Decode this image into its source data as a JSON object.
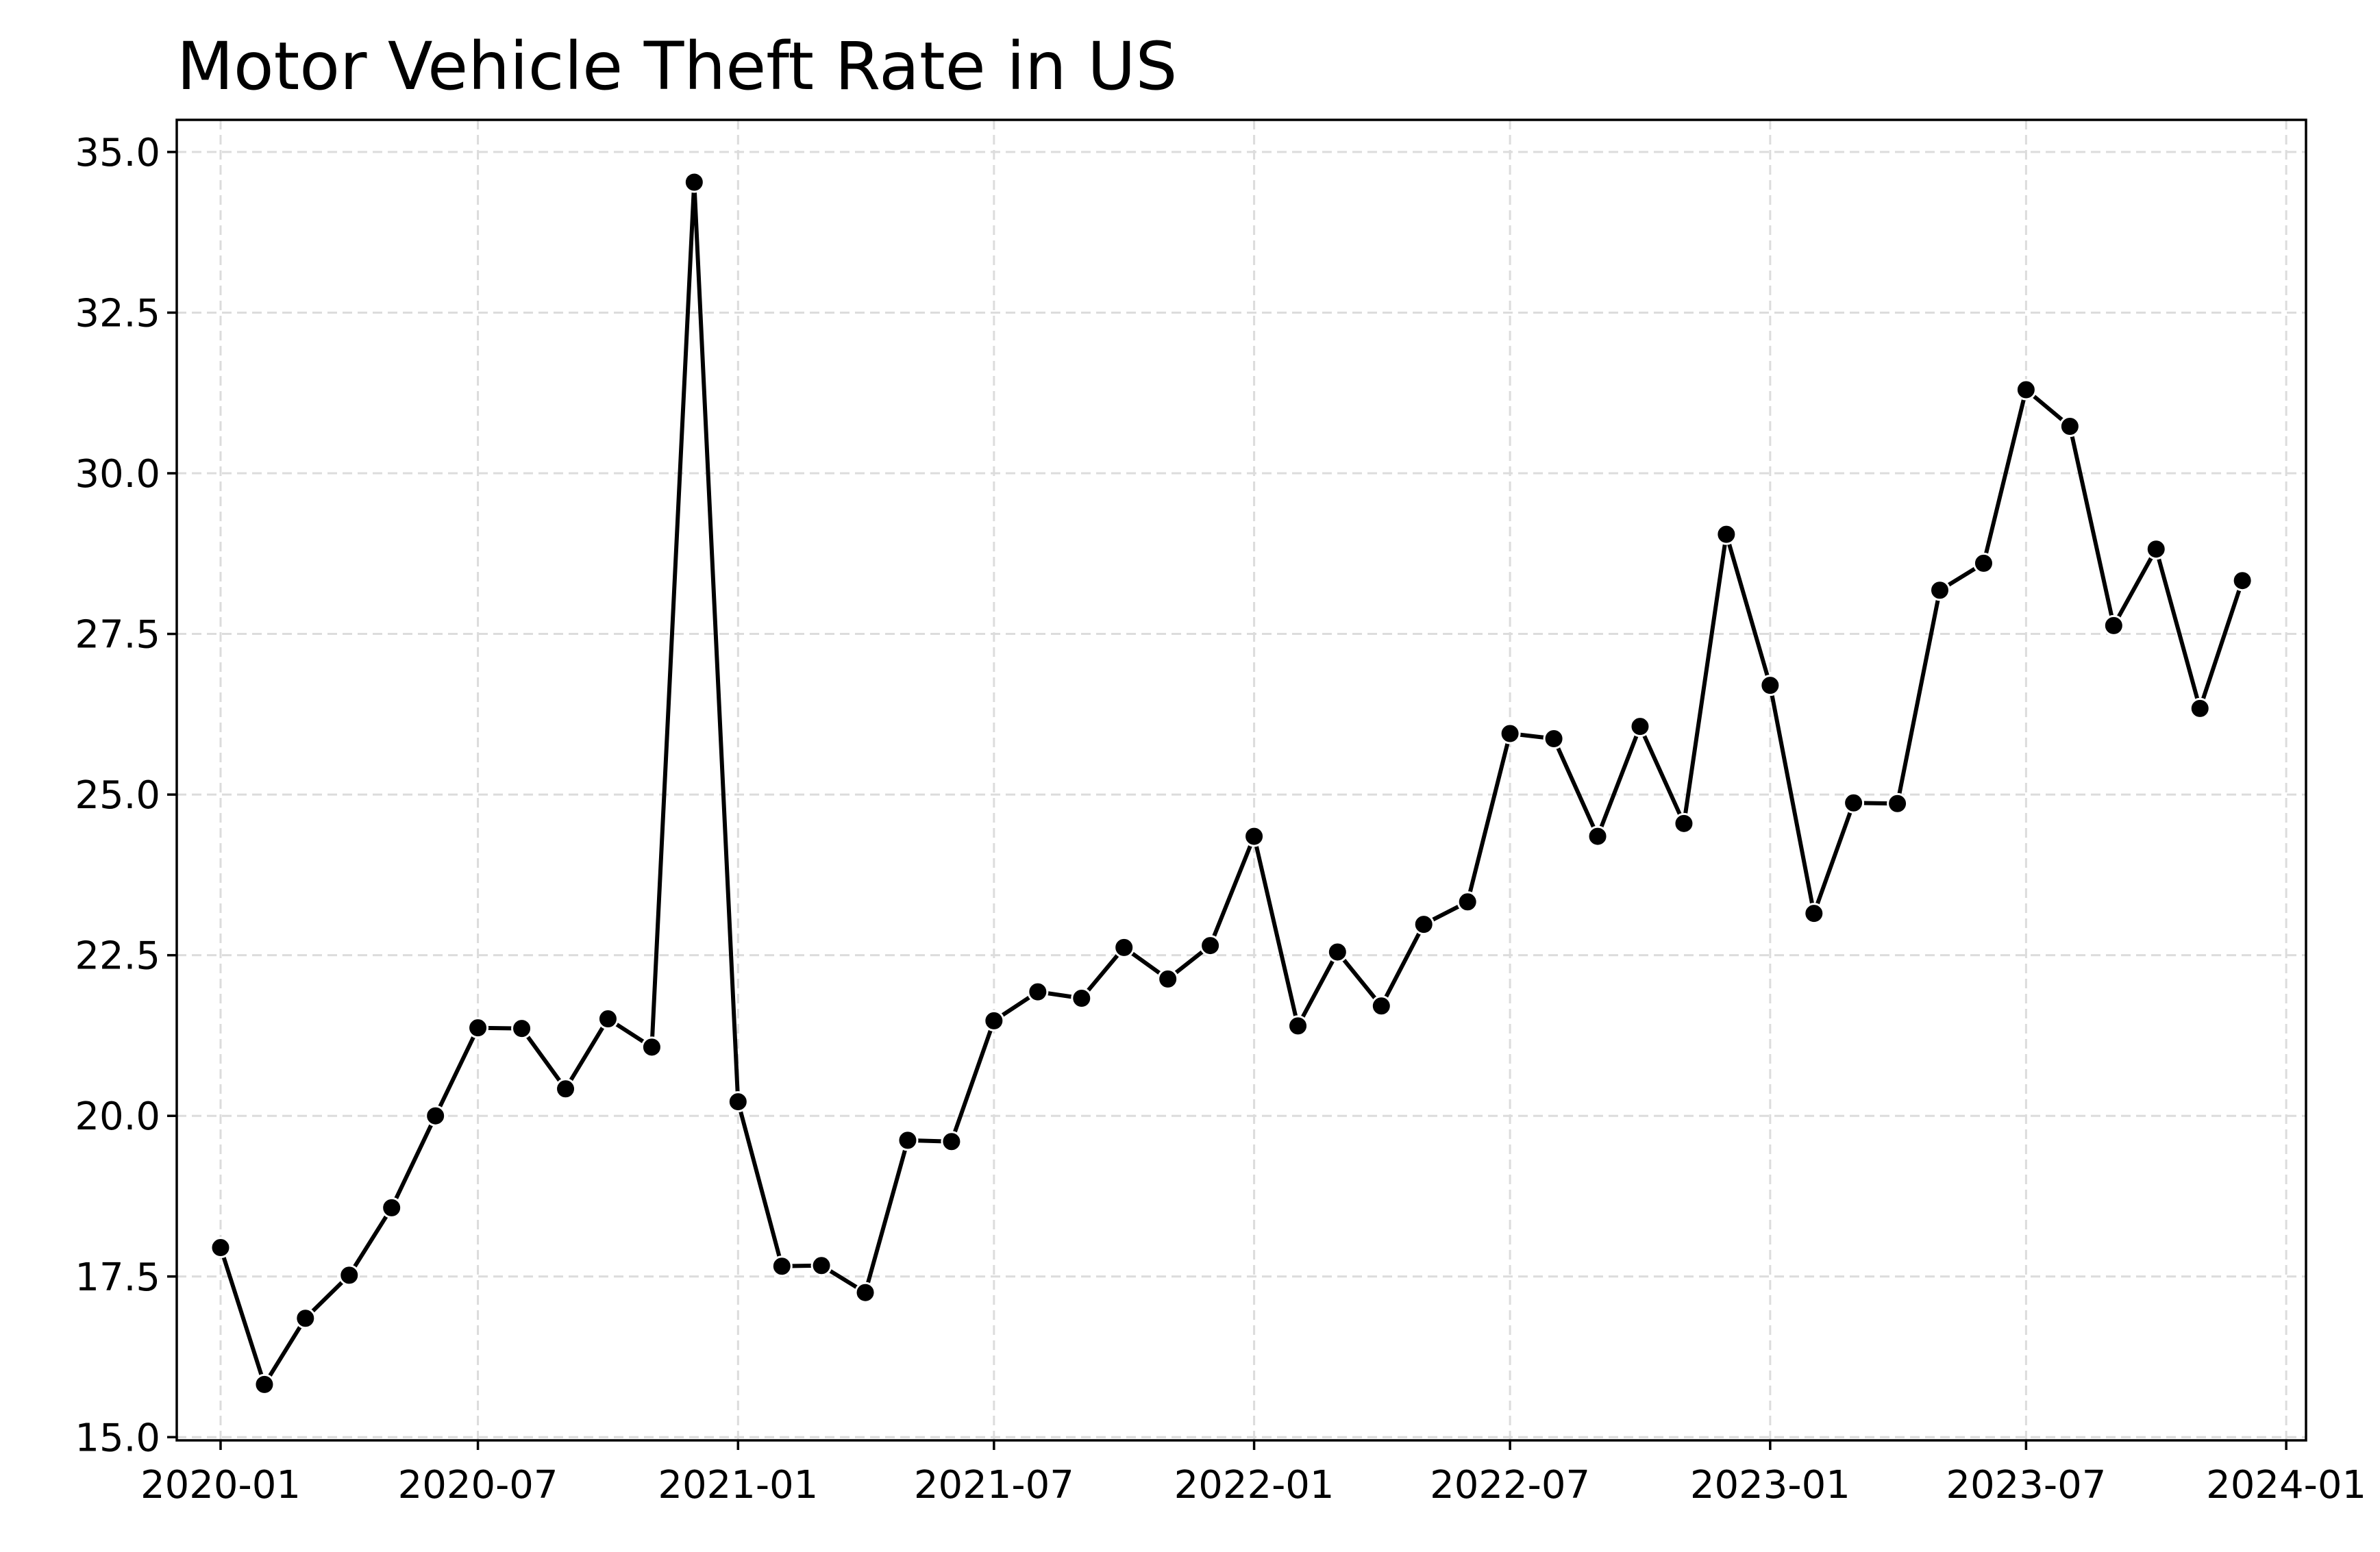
{
  "chart_data": {
    "type": "line",
    "title": "Motor Vehicle Theft Rate in US",
    "xlabel": "",
    "ylabel": "",
    "ylim": [
      14.95,
      35.5
    ],
    "xlim": [
      "2019-12-01",
      "2024-01-15"
    ],
    "grid": true,
    "y_ticks": [
      15.0,
      17.5,
      20.0,
      22.5,
      25.0,
      27.5,
      30.0,
      32.5,
      35.0
    ],
    "y_tick_labels": [
      "15.0",
      "17.5",
      "20.0",
      "22.5",
      "25.0",
      "27.5",
      "30.0",
      "32.5",
      "35.0"
    ],
    "x_ticks": [
      "2020-01-01",
      "2020-07-01",
      "2021-01-01",
      "2021-07-01",
      "2022-01-01",
      "2022-07-01",
      "2023-01-01",
      "2023-07-01",
      "2024-01-01"
    ],
    "x_tick_labels": [
      "2020-01",
      "2020-07",
      "2021-01",
      "2021-07",
      "2022-01",
      "2022-07",
      "2023-01",
      "2023-07",
      "2024-01"
    ],
    "series": [
      {
        "name": "Motor Vehicle Theft Rate",
        "color": "#000000",
        "marker": "circle",
        "x": [
          "2020-01-01",
          "2020-02-01",
          "2020-03-01",
          "2020-04-01",
          "2020-05-01",
          "2020-06-01",
          "2020-07-01",
          "2020-08-01",
          "2020-09-01",
          "2020-10-01",
          "2020-11-01",
          "2020-12-01",
          "2021-01-01",
          "2021-02-01",
          "2021-03-01",
          "2021-04-01",
          "2021-05-01",
          "2021-06-01",
          "2021-07-01",
          "2021-08-01",
          "2021-09-01",
          "2021-10-01",
          "2021-11-01",
          "2021-12-01",
          "2022-01-01",
          "2022-02-01",
          "2022-03-01",
          "2022-04-01",
          "2022-05-01",
          "2022-06-01",
          "2022-07-01",
          "2022-08-01",
          "2022-09-01",
          "2022-10-01",
          "2022-11-01",
          "2022-12-01",
          "2023-01-01",
          "2023-02-01",
          "2023-03-01",
          "2023-04-01",
          "2023-05-01",
          "2023-06-01",
          "2023-07-01",
          "2023-08-01",
          "2023-09-01",
          "2023-10-01",
          "2023-11-01",
          "2023-12-01"
        ],
        "values": [
          17.95,
          15.82,
          16.85,
          17.52,
          18.57,
          20.0,
          21.37,
          21.36,
          20.42,
          21.51,
          21.07,
          34.53,
          20.22,
          17.66,
          17.67,
          17.25,
          19.62,
          19.6,
          21.48,
          21.93,
          21.83,
          22.62,
          22.13,
          22.65,
          24.35,
          21.4,
          22.55,
          21.71,
          22.98,
          23.33,
          25.95,
          25.87,
          24.35,
          26.06,
          24.55,
          29.05,
          26.7,
          23.15,
          24.87,
          24.86,
          28.18,
          28.6,
          31.3,
          30.73,
          27.63,
          28.82,
          26.34,
          28.33
        ]
      }
    ]
  }
}
